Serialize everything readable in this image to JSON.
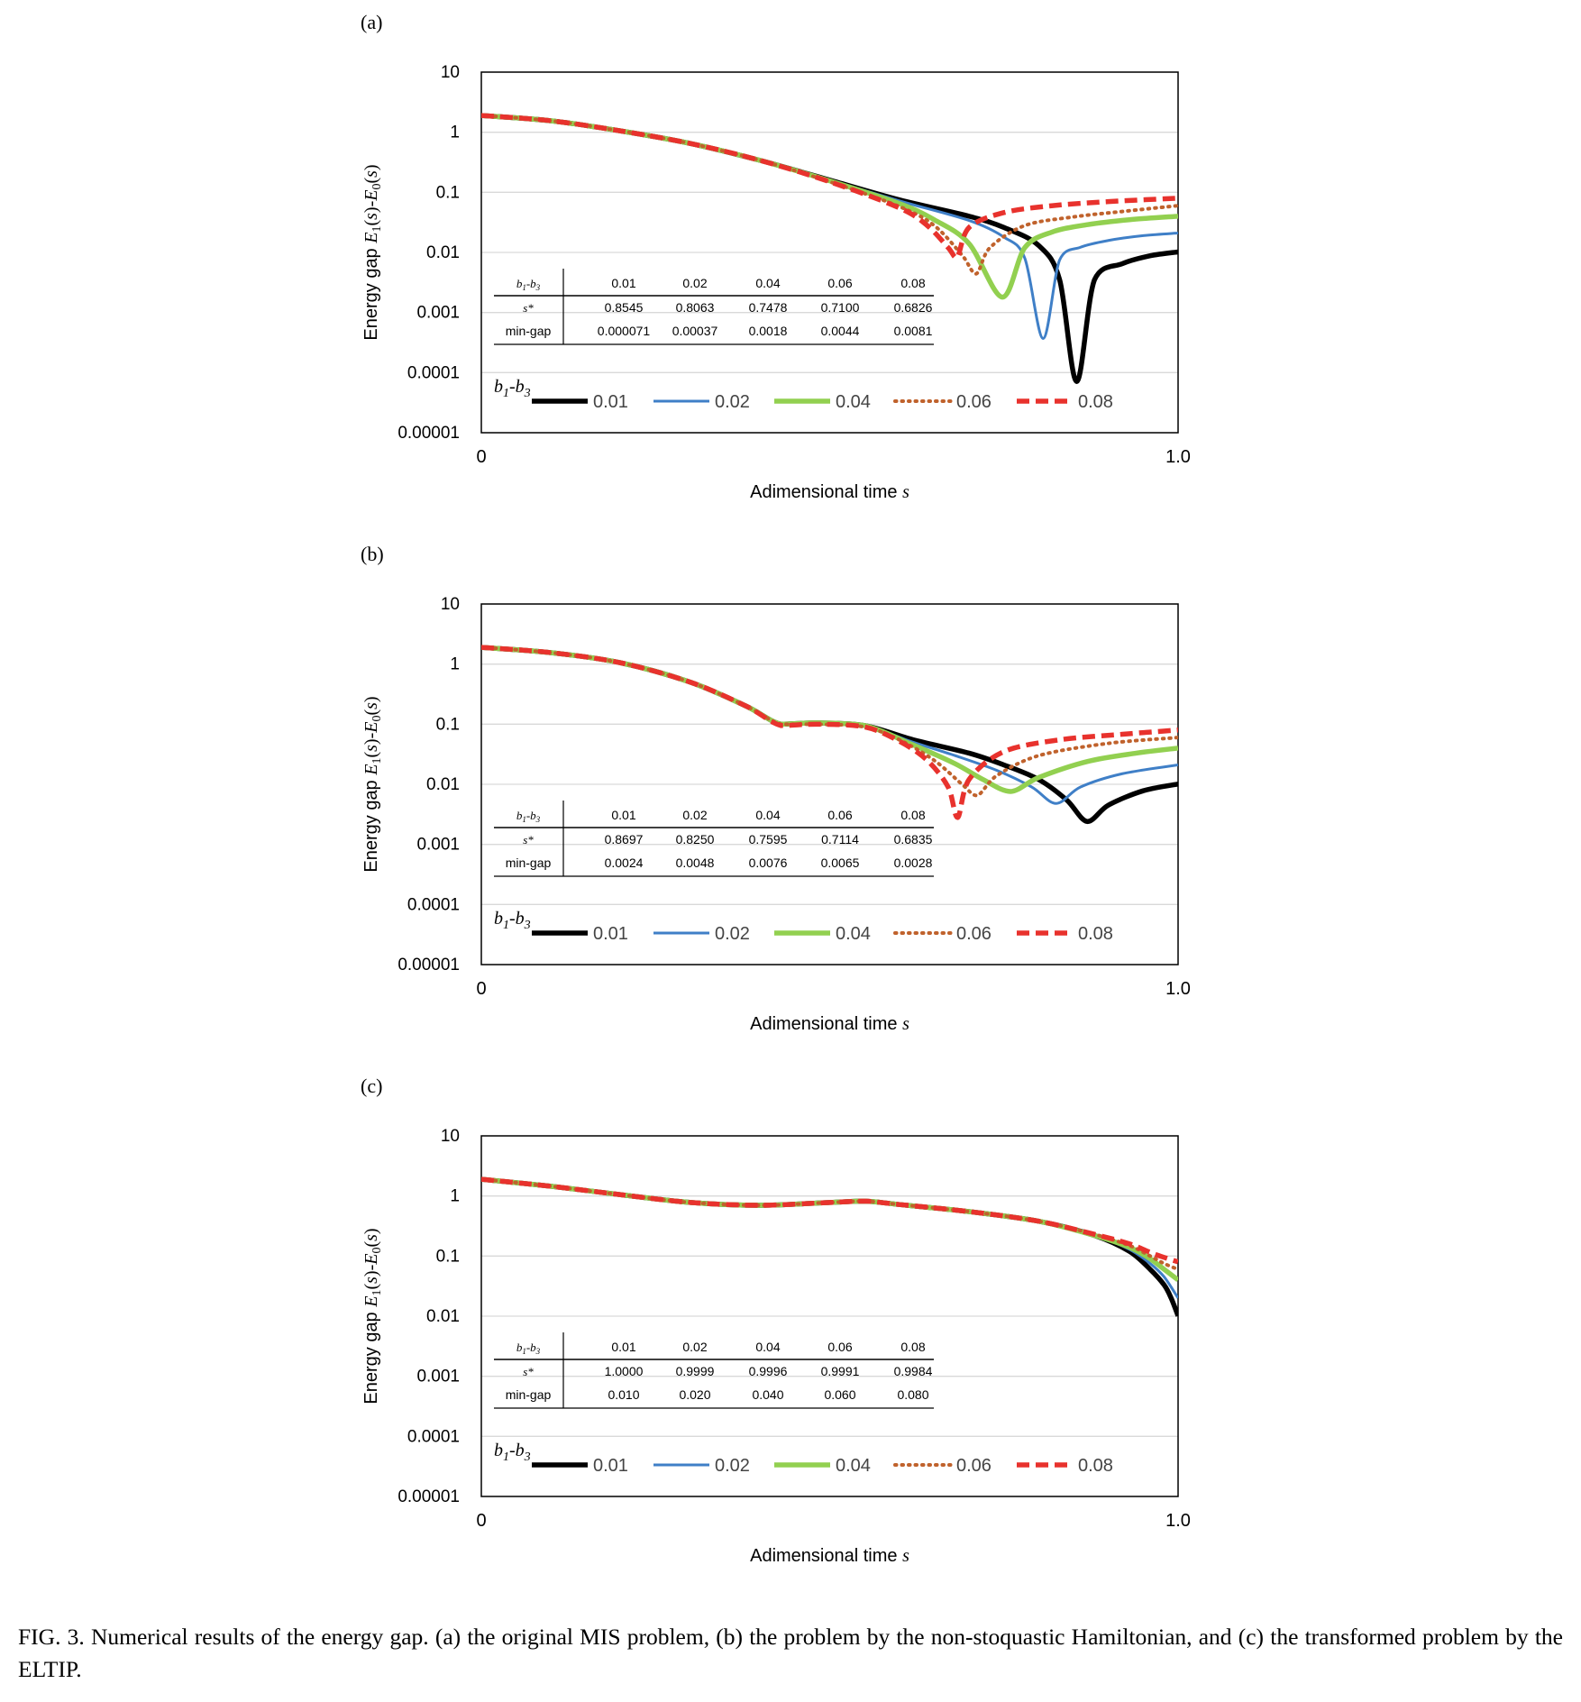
{
  "figure": {
    "caption": "FIG. 3. Numerical results of the energy gap. (a) the original MIS problem, (b) the problem by the non-stoquastic Hamiltonian, and (c) the transformed problem by the ELTIP."
  },
  "colors": {
    "0.01": "#000000",
    "0.02": "#3f7fc7",
    "0.04": "#92d050",
    "0.06": "#c0622c",
    "0.08": "#e8322d"
  },
  "chart_data": [
    {
      "type": "line",
      "panel_label": "(a)",
      "xlabel": "Adimensional time s",
      "ylabel": "Energy gap E1(s)-E0(s)",
      "xlim": [
        0,
        1.0
      ],
      "ylim": [
        1e-05,
        10
      ],
      "y_scale": "log",
      "x_tick_labels": [
        "0",
        "1.0"
      ],
      "y_tick_labels": [
        "10",
        "1",
        "0.1",
        "0.01",
        "0.001",
        "0.0001",
        "0.00001"
      ],
      "grid": "horizontal",
      "legend_title": "b1-b3",
      "legend_position": "bottom",
      "series": [
        {
          "name": "0.01",
          "x": [
            0,
            0.1,
            0.2,
            0.3,
            0.4,
            0.5,
            0.6,
            0.7,
            0.75,
            0.8,
            0.83,
            0.8545,
            0.88,
            0.92,
            0.96,
            1.0
          ],
          "values": [
            1.9,
            1.55,
            1.05,
            0.65,
            0.34,
            0.16,
            0.075,
            0.04,
            0.026,
            0.013,
            0.0035,
            7.1e-05,
            0.0035,
            0.0065,
            0.0088,
            0.0102
          ]
        },
        {
          "name": "0.02",
          "x": [
            0,
            0.1,
            0.2,
            0.3,
            0.4,
            0.5,
            0.6,
            0.7,
            0.75,
            0.78,
            0.8063,
            0.83,
            0.86,
            0.9,
            0.95,
            1.0
          ],
          "values": [
            1.9,
            1.55,
            1.05,
            0.65,
            0.34,
            0.16,
            0.072,
            0.034,
            0.018,
            0.008,
            0.00037,
            0.0075,
            0.0122,
            0.0158,
            0.019,
            0.021
          ]
        },
        {
          "name": "0.04",
          "x": [
            0,
            0.1,
            0.2,
            0.3,
            0.4,
            0.5,
            0.6,
            0.65,
            0.7,
            0.7478,
            0.78,
            0.82,
            0.87,
            0.93,
            1.0
          ],
          "values": [
            1.9,
            1.55,
            1.05,
            0.65,
            0.34,
            0.155,
            0.065,
            0.035,
            0.014,
            0.0018,
            0.012,
            0.022,
            0.029,
            0.035,
            0.04
          ]
        },
        {
          "name": "0.06",
          "x": [
            0,
            0.1,
            0.2,
            0.3,
            0.4,
            0.5,
            0.6,
            0.65,
            0.69,
            0.71,
            0.73,
            0.78,
            0.85,
            0.92,
            1.0
          ],
          "values": [
            1.9,
            1.55,
            1.05,
            0.65,
            0.34,
            0.15,
            0.058,
            0.028,
            0.009,
            0.0044,
            0.012,
            0.028,
            0.039,
            0.048,
            0.06
          ]
        },
        {
          "name": "0.08",
          "x": [
            0,
            0.1,
            0.2,
            0.3,
            0.4,
            0.5,
            0.6,
            0.64,
            0.67,
            0.6826,
            0.7,
            0.75,
            0.82,
            0.9,
            1.0
          ],
          "values": [
            1.9,
            1.55,
            1.05,
            0.65,
            0.34,
            0.15,
            0.055,
            0.028,
            0.012,
            0.0081,
            0.026,
            0.046,
            0.06,
            0.07,
            0.08
          ]
        }
      ],
      "table": {
        "row_headers": [
          "b1-b3",
          "s*",
          "min-gap"
        ],
        "columns": [
          "0.01",
          "0.02",
          "0.04",
          "0.06",
          "0.08"
        ],
        "s_star": [
          "0.8545",
          "0.8063",
          "0.7478",
          "0.7100",
          "0.6826"
        ],
        "min_gap": [
          "0.000071",
          "0.00037",
          "0.0018",
          "0.0044",
          "0.0081"
        ]
      }
    },
    {
      "type": "line",
      "panel_label": "(b)",
      "xlabel": "Adimensional time s",
      "ylabel": "Energy gap E1(s)-E0(s)",
      "xlim": [
        0,
        1.0
      ],
      "ylim": [
        1e-05,
        10
      ],
      "y_scale": "log",
      "x_tick_labels": [
        "0",
        "1.0"
      ],
      "y_tick_labels": [
        "10",
        "1",
        "0.1",
        "0.01",
        "0.001",
        "0.0001",
        "0.00001"
      ],
      "grid": "horizontal",
      "legend_title": "b1-b3",
      "legend_position": "bottom",
      "series": [
        {
          "name": "0.01",
          "x": [
            0,
            0.1,
            0.2,
            0.3,
            0.38,
            0.43,
            0.48,
            0.55,
            0.62,
            0.7,
            0.75,
            0.8,
            0.84,
            0.8697,
            0.9,
            0.95,
            1.0
          ],
          "values": [
            1.9,
            1.55,
            1.05,
            0.5,
            0.2,
            0.1,
            0.105,
            0.095,
            0.055,
            0.033,
            0.021,
            0.012,
            0.0055,
            0.0024,
            0.0045,
            0.0078,
            0.0101
          ]
        },
        {
          "name": "0.02",
          "x": [
            0,
            0.1,
            0.2,
            0.3,
            0.38,
            0.43,
            0.48,
            0.55,
            0.62,
            0.68,
            0.74,
            0.79,
            0.825,
            0.86,
            0.92,
            1.0
          ],
          "values": [
            1.9,
            1.55,
            1.05,
            0.5,
            0.2,
            0.1,
            0.105,
            0.095,
            0.05,
            0.03,
            0.017,
            0.009,
            0.0048,
            0.009,
            0.015,
            0.021
          ]
        },
        {
          "name": "0.04",
          "x": [
            0,
            0.1,
            0.2,
            0.3,
            0.38,
            0.43,
            0.48,
            0.55,
            0.62,
            0.68,
            0.72,
            0.7595,
            0.8,
            0.87,
            0.94,
            1.0
          ],
          "values": [
            1.9,
            1.55,
            1.05,
            0.5,
            0.2,
            0.1,
            0.105,
            0.095,
            0.045,
            0.022,
            0.012,
            0.0076,
            0.013,
            0.024,
            0.033,
            0.04
          ]
        },
        {
          "name": "0.06",
          "x": [
            0,
            0.1,
            0.2,
            0.3,
            0.38,
            0.43,
            0.48,
            0.55,
            0.6,
            0.65,
            0.69,
            0.7114,
            0.74,
            0.8,
            0.9,
            1.0
          ],
          "values": [
            1.9,
            1.55,
            1.05,
            0.5,
            0.2,
            0.1,
            0.1,
            0.09,
            0.055,
            0.025,
            0.01,
            0.0065,
            0.014,
            0.03,
            0.048,
            0.06
          ]
        },
        {
          "name": "0.08",
          "x": [
            0,
            0.1,
            0.2,
            0.3,
            0.38,
            0.43,
            0.48,
            0.55,
            0.6,
            0.64,
            0.67,
            0.6835,
            0.7,
            0.75,
            0.83,
            0.92,
            1.0
          ],
          "values": [
            1.9,
            1.55,
            1.05,
            0.5,
            0.2,
            0.095,
            0.1,
            0.09,
            0.052,
            0.025,
            0.009,
            0.0028,
            0.012,
            0.035,
            0.055,
            0.068,
            0.08
          ]
        }
      ],
      "table": {
        "row_headers": [
          "b1-b3",
          "s*",
          "min-gap"
        ],
        "columns": [
          "0.01",
          "0.02",
          "0.04",
          "0.06",
          "0.08"
        ],
        "s_star": [
          "0.8697",
          "0.8250",
          "0.7595",
          "0.7114",
          "0.6835"
        ],
        "min_gap": [
          "0.0024",
          "0.0048",
          "0.0076",
          "0.0065",
          "0.0028"
        ]
      }
    },
    {
      "type": "line",
      "panel_label": "(c)",
      "xlabel": "Adimensional time s",
      "ylabel": "Energy gap E1(s)-E0(s)",
      "xlim": [
        0,
        1.0
      ],
      "ylim": [
        1e-05,
        10
      ],
      "y_scale": "log",
      "x_tick_labels": [
        "0",
        "1.0"
      ],
      "y_tick_labels": [
        "10",
        "1",
        "0.1",
        "0.01",
        "0.001",
        "0.0001",
        "0.00001"
      ],
      "grid": "horizontal",
      "legend_title": "b1-b3",
      "legend_position": "bottom",
      "series": [
        {
          "name": "0.01",
          "x": [
            0,
            0.1,
            0.2,
            0.3,
            0.4,
            0.5,
            0.55,
            0.6,
            0.7,
            0.8,
            0.88,
            0.93,
            0.96,
            0.98,
            0.99,
            1.0
          ],
          "values": [
            1.9,
            1.45,
            1.05,
            0.78,
            0.7,
            0.78,
            0.82,
            0.72,
            0.55,
            0.38,
            0.22,
            0.12,
            0.06,
            0.033,
            0.02,
            0.0101
          ]
        },
        {
          "name": "0.02",
          "x": [
            0,
            0.1,
            0.2,
            0.3,
            0.4,
            0.5,
            0.55,
            0.6,
            0.7,
            0.8,
            0.88,
            0.93,
            0.96,
            0.98,
            1.0
          ],
          "values": [
            1.9,
            1.45,
            1.05,
            0.78,
            0.7,
            0.78,
            0.82,
            0.72,
            0.55,
            0.38,
            0.22,
            0.13,
            0.075,
            0.045,
            0.02
          ]
        },
        {
          "name": "0.04",
          "x": [
            0,
            0.1,
            0.2,
            0.3,
            0.4,
            0.5,
            0.55,
            0.6,
            0.7,
            0.8,
            0.88,
            0.93,
            0.96,
            0.98,
            1.0
          ],
          "values": [
            1.9,
            1.45,
            1.05,
            0.78,
            0.7,
            0.78,
            0.82,
            0.72,
            0.55,
            0.38,
            0.22,
            0.14,
            0.09,
            0.06,
            0.04
          ]
        },
        {
          "name": "0.06",
          "x": [
            0,
            0.1,
            0.2,
            0.3,
            0.4,
            0.5,
            0.55,
            0.6,
            0.7,
            0.8,
            0.88,
            0.93,
            0.96,
            0.98,
            1.0
          ],
          "values": [
            1.9,
            1.45,
            1.05,
            0.78,
            0.7,
            0.78,
            0.82,
            0.72,
            0.55,
            0.38,
            0.23,
            0.15,
            0.1,
            0.075,
            0.06
          ]
        },
        {
          "name": "0.08",
          "x": [
            0,
            0.1,
            0.2,
            0.3,
            0.4,
            0.5,
            0.55,
            0.6,
            0.7,
            0.8,
            0.88,
            0.93,
            0.96,
            0.98,
            1.0
          ],
          "values": [
            1.9,
            1.45,
            1.05,
            0.78,
            0.7,
            0.78,
            0.82,
            0.72,
            0.55,
            0.38,
            0.23,
            0.16,
            0.115,
            0.095,
            0.08
          ]
        }
      ],
      "table": {
        "row_headers": [
          "b1-b3",
          "s*",
          "min-gap"
        ],
        "columns": [
          "0.01",
          "0.02",
          "0.04",
          "0.06",
          "0.08"
        ],
        "s_star": [
          "1.0000",
          "0.9999",
          "0.9996",
          "0.9991",
          "0.9984"
        ],
        "min_gap": [
          "0.010",
          "0.020",
          "0.040",
          "0.060",
          "0.080"
        ]
      }
    }
  ]
}
